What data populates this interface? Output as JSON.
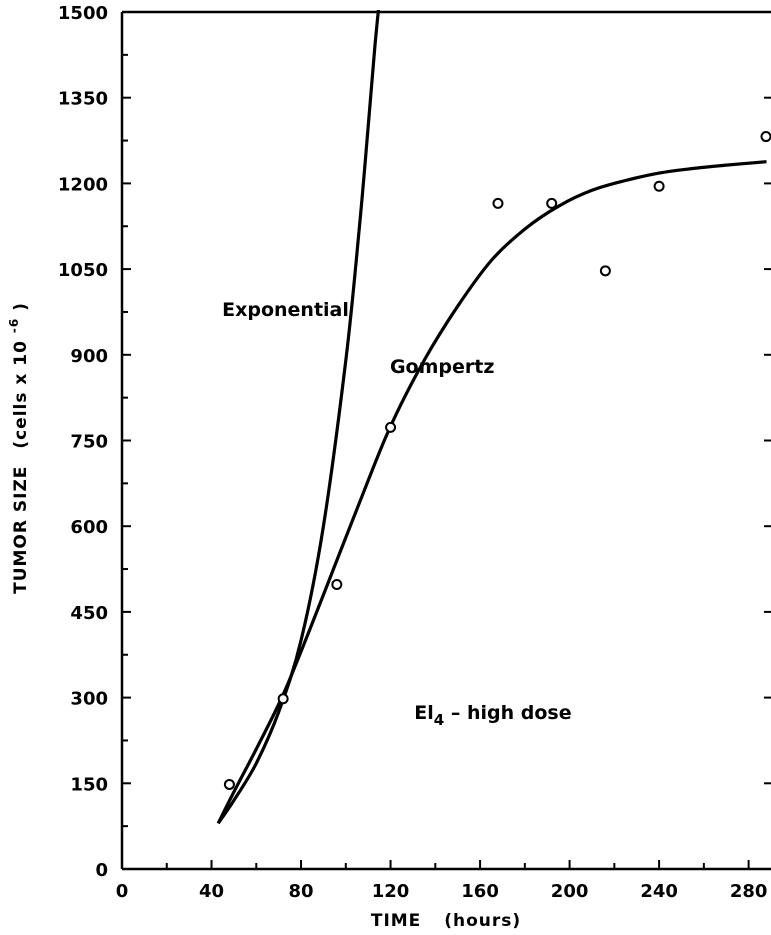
{
  "chart_data": {
    "type": "scatter",
    "xlabel": "TIME",
    "xlabel_unit": "(hours)",
    "ylabel": "TUMOR SIZE",
    "ylabel_unit_prefix": "(cells x 10",
    "ylabel_unit_exp": "-6",
    "ylabel_unit_suffix": ")",
    "xlim": [
      0,
      290
    ],
    "ylim": [
      0,
      1500
    ],
    "x_ticks": [
      "0",
      "40",
      "80",
      "120",
      "160",
      "200",
      "240",
      "280"
    ],
    "y_ticks": [
      "0",
      "150",
      "300",
      "450",
      "600",
      "750",
      "900",
      "1050",
      "1200",
      "1350",
      "1500"
    ],
    "grid": false,
    "series": [
      {
        "kind": "points",
        "x": [
          48,
          72,
          96,
          120,
          168,
          192,
          216,
          240,
          288
        ],
        "y": [
          148,
          298,
          498,
          773,
          1165,
          1165,
          1047,
          1195,
          1282
        ]
      },
      {
        "kind": "curve",
        "x": [
          43,
          50,
          60,
          70,
          80,
          90,
          100,
          106,
          110,
          113,
          115
        ],
        "y": [
          80,
          120,
          185,
          275,
          400,
          600,
          890,
          1120,
          1300,
          1440,
          1520
        ]
      },
      {
        "kind": "curve",
        "x": [
          43,
          50,
          60,
          72,
          84,
          96,
          108,
          120,
          135,
          150,
          165,
          180,
          195,
          210,
          225,
          240,
          255,
          270,
          288
        ],
        "y": [
          80,
          135,
          210,
          305,
          420,
          540,
          660,
          775,
          890,
          985,
          1065,
          1120,
          1160,
          1188,
          1205,
          1218,
          1226,
          1232,
          1238
        ]
      }
    ],
    "annotations": [
      {
        "text": "Exponential",
        "x": 40,
        "y": 980
      },
      {
        "text": "Gompertz",
        "x": 110,
        "y": 880
      }
    ],
    "dose_label": {
      "prefix": "El",
      "subscript": "4",
      "suffix": " – high dose",
      "x": 130,
      "y": 275
    }
  }
}
